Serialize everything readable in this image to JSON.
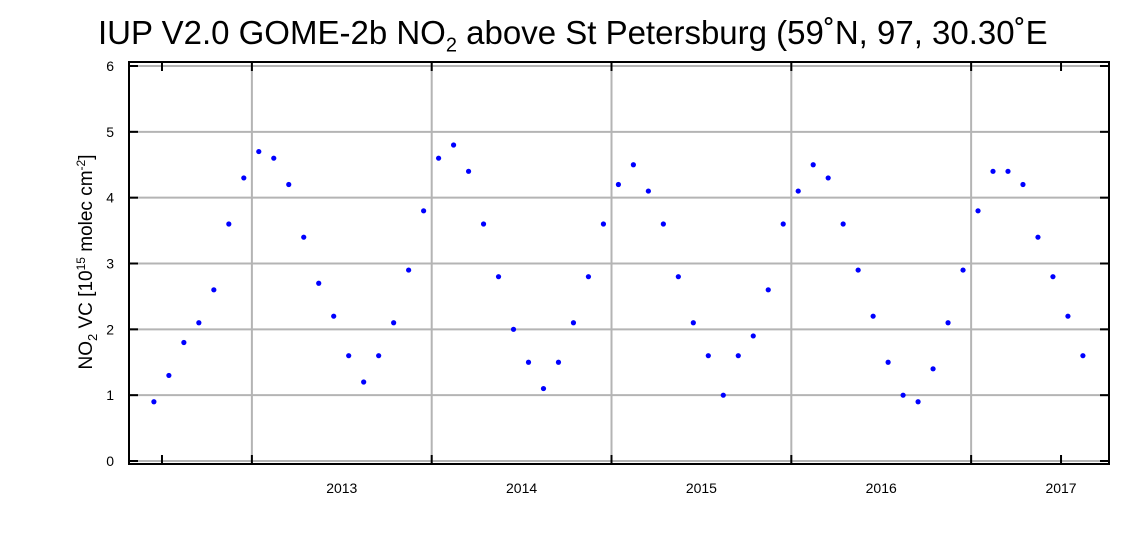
{
  "chart_data": {
    "type": "scatter",
    "title_prefix": "IUP V2.0 GOME-2b NO",
    "title_sub": "2",
    "title_suffix": " above St Petersburg (59˚N, 97, 30.30˚E",
    "ylabel_prefix": "NO",
    "ylabel_sub": "2",
    "ylabel_mid": " VC  [10",
    "ylabel_sup1": "15",
    "ylabel_mid2": " molec cm",
    "ylabel_sup2": "-2",
    "ylabel_end": "]",
    "xlabel": "",
    "ylim": [
      0,
      6
    ],
    "xlim": [
      "2012-06-01",
      "2017-09-01"
    ],
    "yticks": [
      "0",
      "1",
      "2",
      "3",
      "4",
      "5",
      "6"
    ],
    "xticks": [
      "2013",
      "2014",
      "2015",
      "2016",
      "2017"
    ],
    "grid": true,
    "point_color": "#0000ff",
    "series": [
      {
        "x": [
          "2012-06",
          "2012-07",
          "2012-08",
          "2012-09",
          "2012-10",
          "2012-11",
          "2012-12",
          "2013-01",
          "2013-02",
          "2013-03",
          "2013-04",
          "2013-05",
          "2013-06",
          "2013-07",
          "2013-08",
          "2013-09",
          "2013-10",
          "2013-11",
          "2013-12",
          "2014-01",
          "2014-02",
          "2014-03",
          "2014-04",
          "2014-05",
          "2014-06",
          "2014-07",
          "2014-08",
          "2014-09",
          "2014-10",
          "2014-11",
          "2014-12",
          "2015-01",
          "2015-02",
          "2015-03",
          "2015-04",
          "2015-05",
          "2015-06",
          "2015-07",
          "2015-08",
          "2015-09",
          "2015-10",
          "2015-11",
          "2015-12",
          "2016-01",
          "2016-02",
          "2016-03",
          "2016-04",
          "2016-05",
          "2016-06",
          "2016-07",
          "2016-08",
          "2016-09",
          "2016-10",
          "2016-11",
          "2016-12",
          "2017-01",
          "2017-02",
          "2017-03",
          "2017-04",
          "2017-05",
          "2017-06",
          "2017-07",
          "2017-08"
        ],
        "y": [
          0.9,
          1.3,
          1.8,
          2.1,
          2.6,
          3.6,
          4.3,
          4.7,
          4.6,
          4.2,
          3.4,
          2.7,
          2.2,
          1.6,
          1.2,
          1.6,
          2.1,
          2.9,
          3.8,
          4.6,
          4.8,
          4.4,
          3.6,
          2.8,
          2.0,
          1.5,
          1.1,
          1.5,
          2.1,
          2.8,
          3.6,
          4.2,
          4.5,
          4.1,
          3.6,
          2.8,
          2.1,
          1.6,
          1.0,
          1.6,
          1.9,
          2.6,
          3.6,
          4.1,
          4.5,
          4.3,
          3.6,
          2.9,
          2.2,
          1.5,
          1.0,
          0.9,
          1.4,
          2.1,
          2.9,
          3.8,
          4.4,
          4.4,
          4.2,
          3.4,
          2.8,
          2.2,
          1.6
        ]
      }
    ]
  }
}
